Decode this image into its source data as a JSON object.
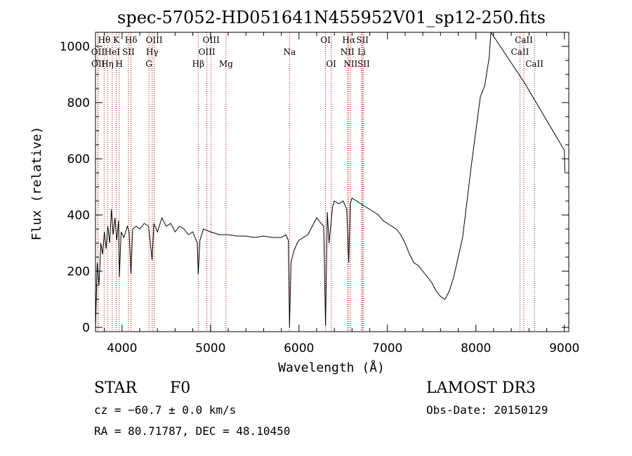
{
  "chart_data": {
    "type": "line",
    "title": "spec-57052-HD051641N455952V01_sp12-250.fits",
    "xlabel": "Wavelength (Å)",
    "ylabel": "Flux (relative)",
    "xlim": [
      3700,
      9050
    ],
    "ylim": [
      -15,
      1050
    ],
    "xticks": [
      4000,
      5000,
      6000,
      7000,
      8000,
      9000
    ],
    "yticks": [
      0,
      200,
      400,
      600,
      800,
      1000
    ],
    "series": [
      {
        "name": "flux",
        "x": [
          3700,
          3720,
          3740,
          3760,
          3780,
          3800,
          3820,
          3840,
          3860,
          3880,
          3900,
          3920,
          3940,
          3960,
          3970,
          3990,
          4020,
          4060,
          4080,
          4101,
          4120,
          4160,
          4200,
          4250,
          4300,
          4340,
          4360,
          4400,
          4450,
          4500,
          4550,
          4600,
          4650,
          4700,
          4750,
          4800,
          4850,
          4861,
          4880,
          4920,
          5000,
          5100,
          5200,
          5300,
          5400,
          5500,
          5600,
          5700,
          5800,
          5850,
          5880,
          5893,
          5910,
          5940,
          5980,
          6000,
          6050,
          6100,
          6150,
          6200,
          6250,
          6280,
          6300,
          6320,
          6340,
          6380,
          6400,
          6450,
          6500,
          6540,
          6563,
          6580,
          6600,
          6650,
          6700,
          6750,
          6800,
          6850,
          6900,
          6950,
          7000,
          7050,
          7100,
          7150,
          7200,
          7250,
          7300,
          7350,
          7400,
          7450,
          7500,
          7550,
          7600,
          7650,
          7700,
          7750,
          7800,
          7850,
          7900,
          7950,
          8000,
          8050,
          8100,
          8150,
          8170,
          8550,
          9000,
          9005
        ],
        "y": [
          0,
          230,
          150,
          300,
          260,
          340,
          280,
          360,
          300,
          420,
          330,
          390,
          310,
          380,
          180,
          340,
          320,
          360,
          340,
          190,
          350,
          360,
          350,
          370,
          360,
          240,
          370,
          340,
          390,
          360,
          370,
          340,
          360,
          350,
          330,
          340,
          300,
          190,
          310,
          350,
          340,
          330,
          330,
          325,
          325,
          320,
          325,
          320,
          320,
          330,
          310,
          0,
          230,
          270,
          300,
          310,
          320,
          330,
          360,
          390,
          370,
          360,
          5,
          410,
          300,
          430,
          450,
          440,
          450,
          420,
          230,
          440,
          460,
          450,
          440,
          430,
          420,
          410,
          400,
          380,
          370,
          360,
          350,
          330,
          300,
          260,
          230,
          220,
          200,
          180,
          160,
          130,
          110,
          100,
          130,
          180,
          250,
          320,
          450,
          580,
          700,
          820,
          860,
          960,
          1050,
          870,
          630,
          550
        ]
      }
    ],
    "spectral_lines": [
      {
        "label": "Hθ",
        "x": 3798,
        "row": 1
      },
      {
        "label": "OII",
        "x": 3727,
        "row": 2
      },
      {
        "label": "OII",
        "x": 3729,
        "row": 3
      },
      {
        "label": "K",
        "x": 3934,
        "row": 1
      },
      {
        "label": "HeI",
        "x": 3889,
        "row": 2
      },
      {
        "label": "Hη",
        "x": 3835,
        "row": 3
      },
      {
        "label": "Hδ",
        "x": 4102,
        "row": 1
      },
      {
        "label": "SII",
        "x": 4072,
        "row": 2
      },
      {
        "label": "H",
        "x": 3968,
        "row": 3
      },
      {
        "label": "OIII",
        "x": 4363,
        "row": 1
      },
      {
        "label": "Hγ",
        "x": 4341,
        "row": 2
      },
      {
        "label": "G",
        "x": 4304,
        "row": 3
      },
      {
        "label": "OIII",
        "x": 5007,
        "row": 1
      },
      {
        "label": "OIII",
        "x": 4959,
        "row": 2
      },
      {
        "label": "Hβ",
        "x": 4861,
        "row": 3
      },
      {
        "label": "Mg",
        "x": 5175,
        "row": 3
      },
      {
        "label": "Na",
        "x": 5893,
        "row": 2
      },
      {
        "label": "OI",
        "x": 6300,
        "row": 1
      },
      {
        "label": "OI",
        "x": 6364,
        "row": 3
      },
      {
        "label": "Hα",
        "x": 6563,
        "row": 1
      },
      {
        "label": "SII",
        "x": 6717,
        "row": 1
      },
      {
        "label": "NII",
        "x": 6548,
        "row": 2
      },
      {
        "label": "Li",
        "x": 6708,
        "row": 2
      },
      {
        "label": "NII",
        "x": 6584,
        "row": 3
      },
      {
        "label": "SII",
        "x": 6731,
        "row": 3
      },
      {
        "label": "CaII",
        "x": 8542,
        "row": 1
      },
      {
        "label": "CaII",
        "x": 8498,
        "row": 2
      },
      {
        "label": "CaII",
        "x": 8662,
        "row": 3
      }
    ]
  },
  "info": {
    "object_class": "STAR",
    "subclass": "F0",
    "survey": "LAMOST DR3",
    "cz": "cz = −60.7 ± 0.0 km/s",
    "obs_date": "Obs-Date: 20150129",
    "coords": "RA =  80.71787, DEC =  48.10450"
  }
}
